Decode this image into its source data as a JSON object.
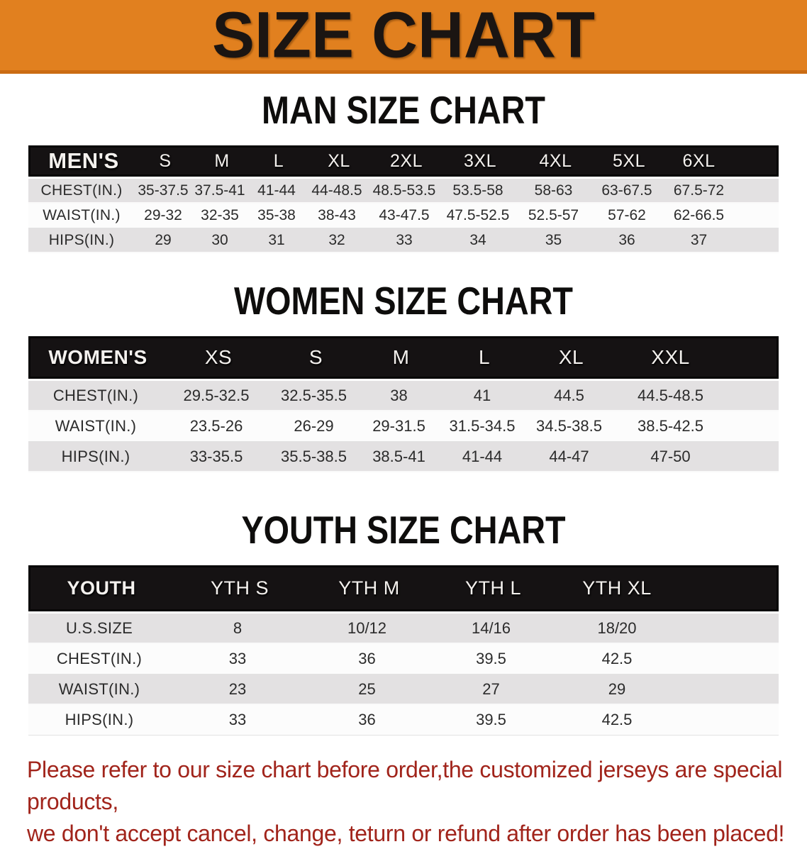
{
  "banner": {
    "title": "SIZE CHART",
    "bg_color": "#e1801f",
    "text_color": "#1b1512"
  },
  "sections": [
    {
      "heading": "MAN SIZE CHART",
      "header_label": "MEN'S",
      "columns": [
        "S",
        "M",
        "L",
        "XL",
        "2XL",
        "3XL",
        "4XL",
        "5XL",
        "6XL"
      ],
      "rows": [
        {
          "label": "CHEST(IN.)",
          "values": [
            "35-37.5",
            "37.5-41",
            "41-44",
            "44-48.5",
            "48.5-53.5",
            "53.5-58",
            "58-63",
            "63-67.5",
            "67.5-72"
          ]
        },
        {
          "label": "WAIST(IN.)",
          "values": [
            "29-32",
            "32-35",
            "35-38",
            "38-43",
            "43-47.5",
            "47.5-52.5",
            "52.5-57",
            "57-62",
            "62-66.5"
          ]
        },
        {
          "label": "HIPS(IN.)",
          "values": [
            "29",
            "30",
            "31",
            "32",
            "33",
            "34",
            "35",
            "36",
            "37"
          ]
        }
      ]
    },
    {
      "heading": "WOMEN SIZE CHART",
      "header_label": "WOMEN'S",
      "columns": [
        "XS",
        "S",
        "M",
        "L",
        "XL",
        "XXL"
      ],
      "rows": [
        {
          "label": "CHEST(IN.)",
          "values": [
            "29.5-32.5",
            "32.5-35.5",
            "38",
            "41",
            "44.5",
            "44.5-48.5"
          ]
        },
        {
          "label": "WAIST(IN.)",
          "values": [
            "23.5-26",
            "26-29",
            "29-31.5",
            "31.5-34.5",
            "34.5-38.5",
            "38.5-42.5"
          ]
        },
        {
          "label": "HIPS(IN.)",
          "values": [
            "33-35.5",
            "35.5-38.5",
            "38.5-41",
            "41-44",
            "44-47",
            "47-50"
          ]
        }
      ]
    },
    {
      "heading": "YOUTH SIZE CHART",
      "header_label": "YOUTH",
      "columns": [
        "YTH S",
        "YTH M",
        "YTH L",
        "YTH XL"
      ],
      "rows": [
        {
          "label": "U.S.SIZE",
          "values": [
            "8",
            "10/12",
            "14/16",
            "18/20"
          ]
        },
        {
          "label": "CHEST(IN.)",
          "values": [
            "33",
            "36",
            "39.5",
            "42.5"
          ]
        },
        {
          "label": "WAIST(IN.)",
          "values": [
            "23",
            "25",
            "27",
            "29"
          ]
        },
        {
          "label": "HIPS(IN.)",
          "values": [
            "33",
            "36",
            "39.5",
            "42.5"
          ]
        }
      ]
    }
  ],
  "footer": {
    "text_color": "#a1241b",
    "lines": [
      "Please refer to our size chart before order,the customized jerseys are special products,",
      "we don't accept cancel, change, teturn or refund after order has been placed!"
    ]
  }
}
